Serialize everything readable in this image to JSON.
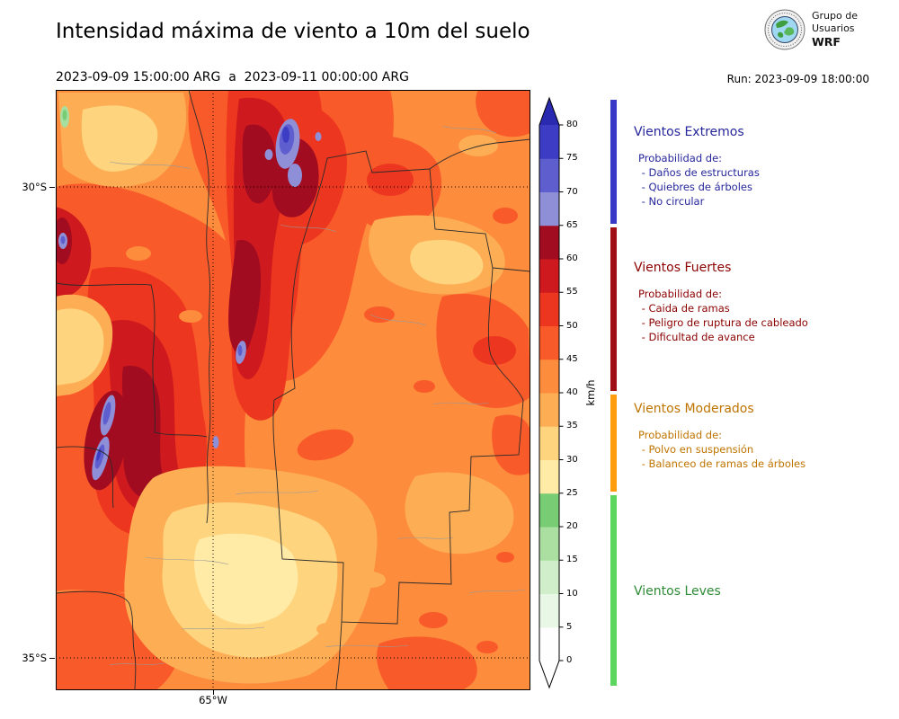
{
  "header": {
    "title": "Intensidad máxima de viento a 10m del suelo",
    "date_range": "2023-09-09 15:00:00 ARG  a  2023-09-11 00:00:00 ARG",
    "run_label": "Run: 2023-09-09 18:00:00"
  },
  "logo": {
    "line1": "Grupo de",
    "line2": "Usuarios",
    "line3": "WRF"
  },
  "map": {
    "lat_labels": [
      "30°S",
      "35°S"
    ],
    "lon_label": "65°W"
  },
  "colorbar": {
    "unit": "km/h",
    "vmin": 0,
    "vmax": 80,
    "step": 5,
    "ticks": [
      0,
      5,
      10,
      15,
      20,
      25,
      30,
      35,
      40,
      45,
      50,
      55,
      60,
      65,
      70,
      75,
      80
    ],
    "segment_colors": [
      "#fdfefd",
      "#e9f7e6",
      "#cfeec9",
      "#abdfa2",
      "#77cc74",
      "#ffeaa6",
      "#fed47e",
      "#fdae55",
      "#fd8c3c",
      "#f95a29",
      "#ed361f",
      "#ce1a1e",
      "#a20c20",
      "#8f8fd8",
      "#5e5ecf",
      "#3c3cc4"
    ],
    "over_color": "#2a2ab0",
    "under_color": "#ffffff"
  },
  "legend": {
    "sections": [
      {
        "title": "Vientos Extremos",
        "bar_color": "#3939c8",
        "text_color": "#26269c",
        "range_kmh": [
          65,
          84
        ],
        "lines": [
          "Probabilidad de:",
          " - Daños de estructuras",
          " - Quiebres de árboles",
          " - No circular"
        ]
      },
      {
        "title": "Vientos Fuertes",
        "bar_color": "#a00f15",
        "text_color": "#8b0000",
        "range_kmh": [
          40,
          65
        ],
        "lines": [
          "Probabilidad de:",
          " - Caida de ramas",
          " - Peligro de ruptura de cableado",
          " - Dificultad de avance"
        ]
      },
      {
        "title": "Vientos Moderados",
        "bar_color": "#ff9d0e",
        "text_color": "#bf7400",
        "range_kmh": [
          25,
          40
        ],
        "lines": [
          "Probabilidad de:",
          " - Polvo en suspensión",
          " - Balanceo de ramas de árboles"
        ]
      },
      {
        "title": "Vientos Leves",
        "bar_color": "#5cd65c",
        "text_color": "#2e8b37",
        "range_kmh": [
          -4,
          25
        ],
        "lines": []
      }
    ]
  }
}
